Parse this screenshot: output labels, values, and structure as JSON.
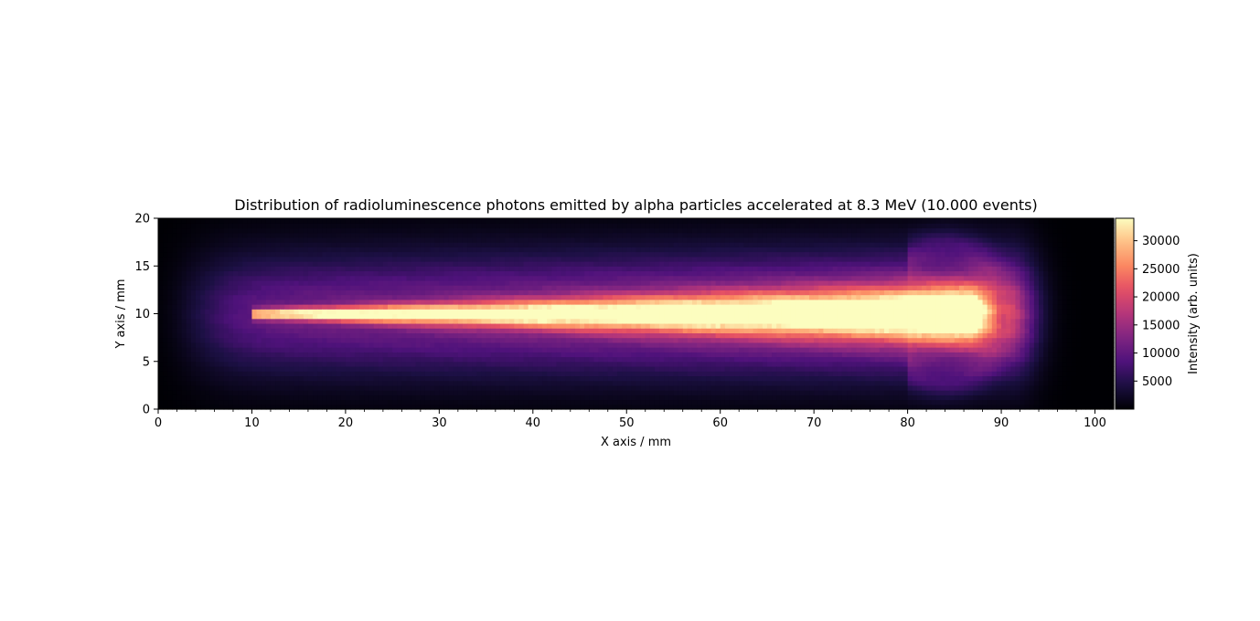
{
  "chart_data": {
    "type": "heatmap",
    "title": "Distribution of radioluminescence photons emitted by alpha particles accelerated at 8.3 MeV (10.000 events)",
    "xlabel": "X axis / mm",
    "ylabel": "Y axis / mm",
    "xlim": [
      0,
      102
    ],
    "ylim": [
      0,
      20
    ],
    "x_ticks": [
      "0",
      "10",
      "20",
      "30",
      "40",
      "50",
      "60",
      "70",
      "80",
      "90",
      "100"
    ],
    "y_ticks": [
      "0",
      "5",
      "10",
      "15",
      "20"
    ],
    "grid": false,
    "colormap": "magma",
    "colorbar": {
      "label": "Intensity (arb. units)",
      "min": 0,
      "max": 34000,
      "ticks": [
        "5000",
        "10000",
        "15000",
        "20000",
        "25000",
        "30000"
      ]
    },
    "description_of_distribution": {
      "beam_start_x": 10,
      "bragg_peak_x": 84,
      "range_end_x": 89,
      "center_y": 10,
      "peak_intensity": 33000
    }
  }
}
